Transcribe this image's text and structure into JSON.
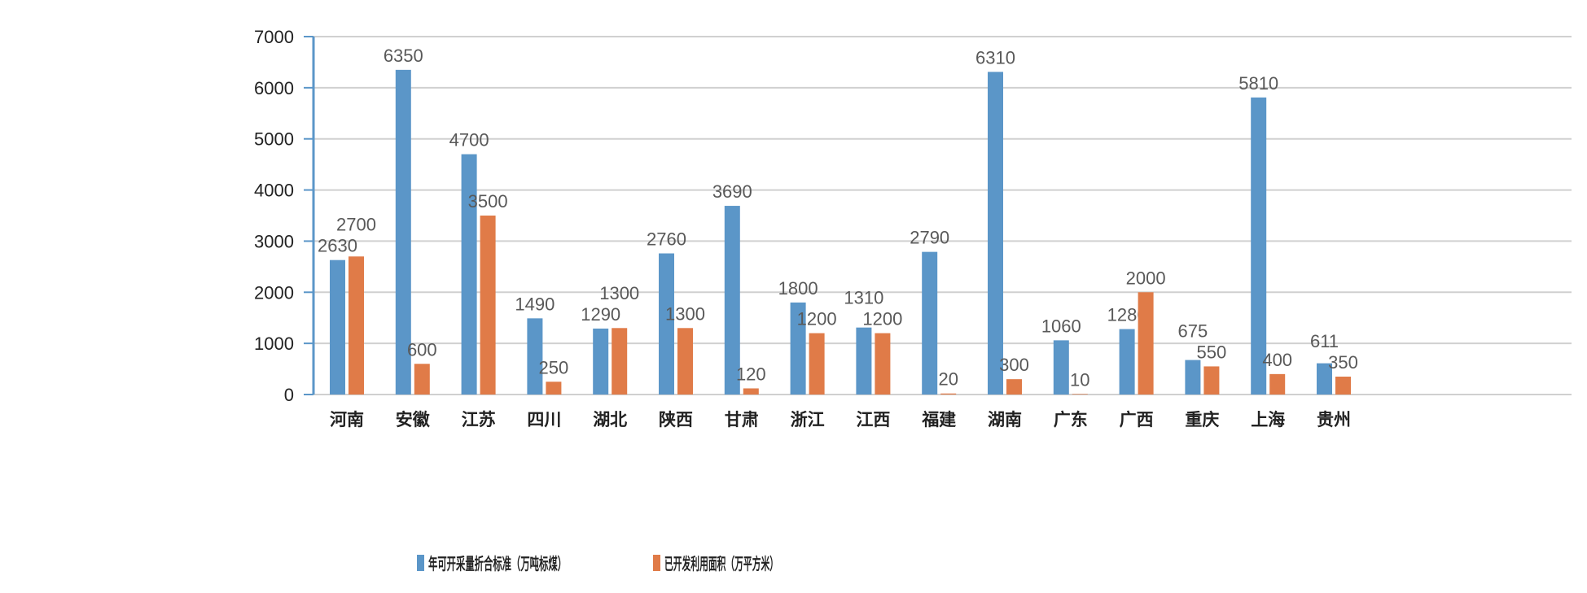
{
  "chart_data": {
    "type": "bar",
    "categories": [
      "河南",
      "安徽",
      "江苏",
      "四川",
      "湖北",
      "陕西",
      "甘肃",
      "浙江",
      "江西",
      "福建",
      "湖南",
      "广东",
      "广西",
      "重庆",
      "上海",
      "贵州"
    ],
    "series": [
      {
        "name": "年可开采量折合标准（万吨标煤）",
        "color": "#5b96c8",
        "values": [
          2630,
          6350,
          4700,
          1490,
          1290,
          2760,
          3690,
          1800,
          1310,
          2790,
          6310,
          1060,
          1280,
          675,
          5810,
          611
        ]
      },
      {
        "name": "已开发利用面积（万平方米）",
        "color": "#e07b48",
        "values": [
          2700,
          600,
          3500,
          250,
          1300,
          1300,
          120,
          1200,
          1200,
          20,
          300,
          10,
          2000,
          550,
          400,
          350
        ]
      }
    ],
    "ylim": [
      0,
      7000
    ],
    "yticks": [
      0,
      1000,
      2000,
      3000,
      4000,
      5000,
      6000,
      7000
    ],
    "grid": true,
    "legend": "bottom",
    "data_labels": true
  }
}
